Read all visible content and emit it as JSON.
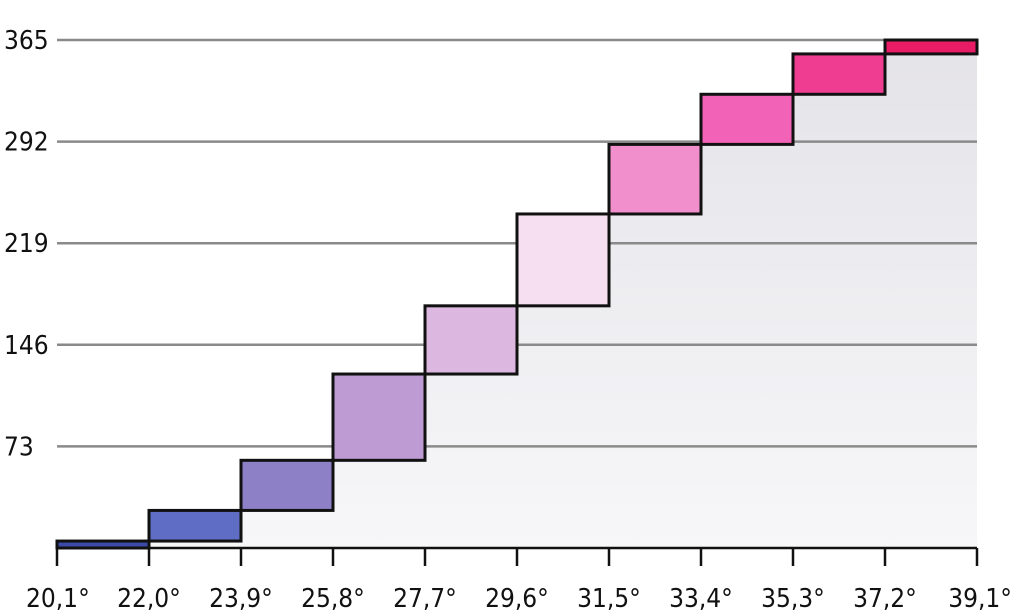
{
  "chart_data": {
    "type": "bar",
    "title": "",
    "xlabel": "",
    "ylabel": "",
    "x_tick_labels": [
      "20,1°",
      "22,0°",
      "23,9°",
      "25,8°",
      "27,7°",
      "29,6°",
      "31,5°",
      "33,4°",
      "35,3°",
      "37,2°",
      "39,1°"
    ],
    "y_ticks": [
      73,
      146,
      219,
      292,
      365
    ],
    "ylim": [
      0,
      365
    ],
    "grid": true,
    "legend": "none",
    "bins": [
      {
        "from": "20,1°",
        "to": "22,0°",
        "low": 0,
        "high": 5,
        "color": "#3c4aa8"
      },
      {
        "from": "22,0°",
        "to": "23,9°",
        "low": 5,
        "high": 27,
        "color": "#5f6ec4"
      },
      {
        "from": "23,9°",
        "to": "25,8°",
        "low": 27,
        "high": 63,
        "color": "#8d80c7"
      },
      {
        "from": "25,8°",
        "to": "27,7°",
        "low": 63,
        "high": 125,
        "color": "#bf9bd4"
      },
      {
        "from": "27,7°",
        "to": "29,6°",
        "low": 125,
        "high": 174,
        "color": "#dcb7e0"
      },
      {
        "from": "29,6°",
        "to": "31,5°",
        "low": 174,
        "high": 240,
        "color": "#f6dff0"
      },
      {
        "from": "31,5°",
        "to": "33,4°",
        "low": 240,
        "high": 290,
        "color": "#f08fcb"
      },
      {
        "from": "33,4°",
        "to": "35,3°",
        "low": 290,
        "high": 326,
        "color": "#f262b6"
      },
      {
        "from": "35,3°",
        "to": "37,2°",
        "low": 326,
        "high": 355,
        "color": "#ef3e91"
      },
      {
        "from": "37,2°",
        "to": "39,1°",
        "low": 355,
        "high": 365,
        "color": "#e81c64"
      }
    ]
  }
}
